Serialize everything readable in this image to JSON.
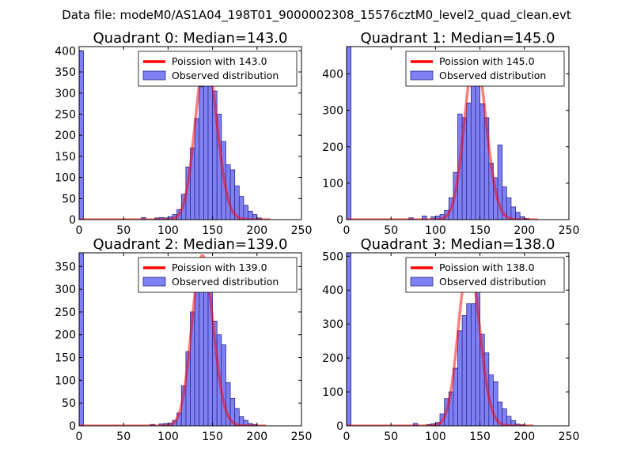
{
  "figure": {
    "suptitle": "Data file: modeM0/AS1A04_198T01_9000002308_15576cztM0_level2_quad_clean.evt",
    "colors": {
      "bar_fill": "#8080f5",
      "bar_edge": "#2a2a8c",
      "fit_line": "#ff0000"
    }
  },
  "chart_data": [
    {
      "type": "bar",
      "title": "Quadrant 0: Median=143.0",
      "xlim": [
        0,
        250
      ],
      "ylim": [
        0,
        410
      ],
      "xticks": [
        "0",
        "50",
        "100",
        "150",
        "200",
        "250"
      ],
      "yticks": [
        "0",
        "50",
        "100",
        "150",
        "200",
        "250",
        "300",
        "350",
        "400"
      ],
      "legend": {
        "position": "top-right",
        "fit_label": "Poission with 143.0",
        "hist_label": "Observed distribution"
      },
      "fit": {
        "mean": 143.0,
        "peak": 388,
        "x_range": [
          0,
          215
        ]
      },
      "bin_width": 5,
      "bins": [
        [
          0,
          400
        ],
        [
          70,
          5
        ],
        [
          85,
          4
        ],
        [
          90,
          5
        ],
        [
          95,
          4
        ],
        [
          100,
          7
        ],
        [
          105,
          12
        ],
        [
          110,
          24
        ],
        [
          115,
          60
        ],
        [
          120,
          125
        ],
        [
          125,
          170
        ],
        [
          130,
          240
        ],
        [
          135,
          315
        ],
        [
          140,
          358
        ],
        [
          145,
          340
        ],
        [
          150,
          305
        ],
        [
          155,
          250
        ],
        [
          160,
          185
        ],
        [
          165,
          130
        ],
        [
          170,
          118
        ],
        [
          175,
          80
        ],
        [
          180,
          55
        ],
        [
          185,
          34
        ],
        [
          190,
          20
        ],
        [
          195,
          12
        ],
        [
          200,
          4
        ]
      ]
    },
    {
      "type": "bar",
      "title": "Quadrant 1: Median=145.0",
      "xlim": [
        0,
        250
      ],
      "ylim": [
        0,
        475
      ],
      "xticks": [
        "0",
        "50",
        "100",
        "150",
        "200",
        "250"
      ],
      "yticks": [
        "0",
        "100",
        "200",
        "300",
        "400"
      ],
      "legend": {
        "position": "top-right",
        "fit_label": "Poission with 145.0",
        "hist_label": "Observed distribution"
      },
      "fit": {
        "mean": 145.0,
        "peak": 452,
        "x_range": [
          0,
          215
        ]
      },
      "bin_width": 5,
      "bins": [
        [
          0,
          475
        ],
        [
          70,
          5
        ],
        [
          85,
          10
        ],
        [
          95,
          8
        ],
        [
          100,
          10
        ],
        [
          105,
          14
        ],
        [
          110,
          25
        ],
        [
          115,
          60
        ],
        [
          120,
          130
        ],
        [
          125,
          290
        ],
        [
          130,
          280
        ],
        [
          135,
          320
        ],
        [
          140,
          395
        ],
        [
          145,
          410
        ],
        [
          150,
          318
        ],
        [
          155,
          280
        ],
        [
          160,
          155
        ],
        [
          165,
          115
        ],
        [
          170,
          205
        ],
        [
          175,
          90
        ],
        [
          180,
          60
        ],
        [
          185,
          35
        ],
        [
          190,
          20
        ],
        [
          195,
          8
        ],
        [
          200,
          3
        ]
      ]
    },
    {
      "type": "bar",
      "title": "Quadrant 2: Median=139.0",
      "xlim": [
        0,
        250
      ],
      "ylim": [
        0,
        380
      ],
      "xticks": [
        "0",
        "50",
        "100",
        "150",
        "200",
        "250"
      ],
      "yticks": [
        "0",
        "50",
        "100",
        "150",
        "200",
        "250",
        "300",
        "350"
      ],
      "legend": {
        "position": "top-right",
        "fit_label": "Poission with 139.0",
        "hist_label": "Observed distribution"
      },
      "fit": {
        "mean": 139.0,
        "peak": 374,
        "x_range": [
          0,
          210
        ]
      },
      "bin_width": 5,
      "bins": [
        [
          0,
          380
        ],
        [
          80,
          3
        ],
        [
          90,
          4
        ],
        [
          95,
          5
        ],
        [
          100,
          6
        ],
        [
          105,
          12
        ],
        [
          110,
          28
        ],
        [
          115,
          88
        ],
        [
          120,
          163
        ],
        [
          125,
          250
        ],
        [
          130,
          350
        ],
        [
          135,
          330
        ],
        [
          140,
          340
        ],
        [
          145,
          318
        ],
        [
          150,
          230
        ],
        [
          155,
          200
        ],
        [
          160,
          178
        ],
        [
          165,
          95
        ],
        [
          170,
          60
        ],
        [
          175,
          38
        ],
        [
          180,
          20
        ],
        [
          185,
          12
        ],
        [
          190,
          5
        ],
        [
          195,
          3
        ]
      ]
    },
    {
      "type": "bar",
      "title": "Quadrant 3: Median=138.0",
      "xlim": [
        0,
        250
      ],
      "ylim": [
        0,
        510
      ],
      "xticks": [
        "0",
        "50",
        "100",
        "150",
        "200",
        "250"
      ],
      "yticks": [
        "0",
        "100",
        "200",
        "300",
        "400",
        "500"
      ],
      "legend": {
        "position": "top-right",
        "fit_label": "Poission with 138.0",
        "hist_label": "Observed distribution"
      },
      "fit": {
        "mean": 138.0,
        "peak": 488,
        "x_range": [
          0,
          210
        ]
      },
      "bin_width": 5,
      "bins": [
        [
          0,
          510
        ],
        [
          75,
          7
        ],
        [
          90,
          4
        ],
        [
          95,
          6
        ],
        [
          100,
          10
        ],
        [
          105,
          35
        ],
        [
          110,
          80
        ],
        [
          115,
          100
        ],
        [
          120,
          170
        ],
        [
          125,
          280
        ],
        [
          130,
          325
        ],
        [
          135,
          360
        ],
        [
          140,
          360
        ],
        [
          145,
          455
        ],
        [
          150,
          270
        ],
        [
          155,
          215
        ],
        [
          160,
          150
        ],
        [
          165,
          130
        ],
        [
          170,
          70
        ],
        [
          175,
          50
        ],
        [
          180,
          28
        ],
        [
          185,
          15
        ],
        [
          190,
          5
        ],
        [
          195,
          3
        ]
      ]
    }
  ]
}
